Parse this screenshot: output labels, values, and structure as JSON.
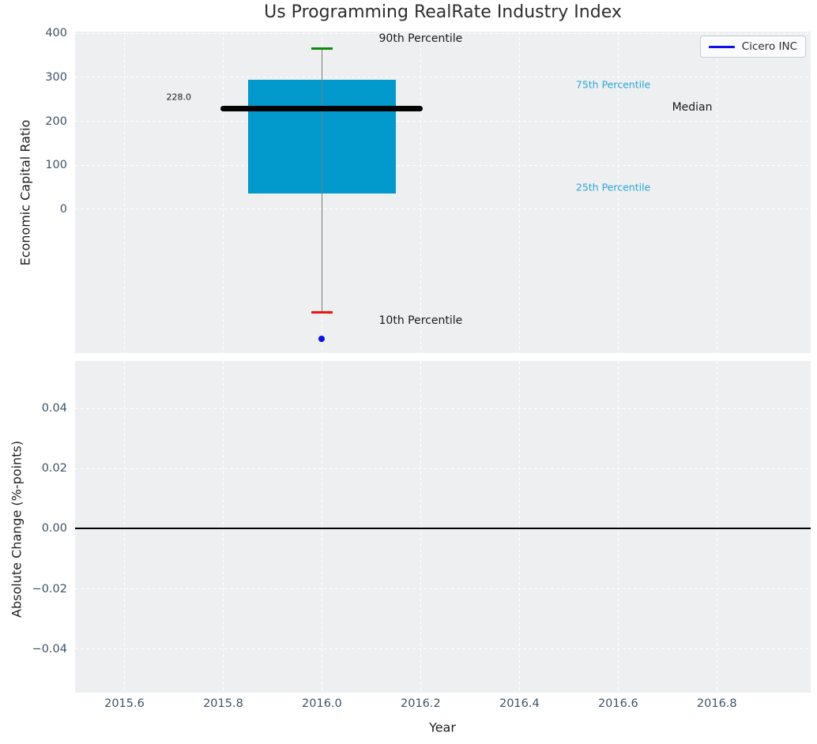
{
  "figure": {
    "title": "Us Programming RealRate Industry Index",
    "background": "#ffffff",
    "axes_background": "#edeff0",
    "grid_color": "#ffffff",
    "tick_color": "#3d5266"
  },
  "chart_data": [
    {
      "type": "boxplot",
      "title": "Us Programming RealRate Industry Index",
      "ylabel": "Economic Capital Ratio",
      "xlabel": "",
      "grid": "dashed-white",
      "legend_position": "upper right",
      "legend": {
        "label": "Cicero INC",
        "line_color": "#0d0df2"
      },
      "x_year": 2016,
      "box": {
        "p90": 365,
        "p75": 295,
        "median": 228,
        "p25": 35,
        "p10": -235,
        "median_label": "228.0",
        "box_color": "#0299cd",
        "whisker_color": "#7a7a7a",
        "p90_cap_color": "#0e8a0e",
        "p10_cap_color": "#ee1408",
        "median_color": "#000000",
        "box_halfwidth_years": 0.15,
        "median_halfwidth_years": 0.205,
        "cap_halfwidth_years": 0.022
      },
      "company_point": {
        "name": "Cicero INC",
        "x": 2016,
        "y": -295,
        "color": "#0d0df2"
      },
      "annotations": [
        {
          "text": "90th Percentile",
          "x": 2016.2,
          "y": 387,
          "color": "#1a1a1a",
          "size": 14
        },
        {
          "text": "75th Percentile",
          "x": 2016.59,
          "y": 284,
          "color": "#2aa6d8",
          "size": 12.5
        },
        {
          "text": "Median",
          "x": 2016.75,
          "y": 232,
          "color": "#1a1a1a",
          "size": 14
        },
        {
          "text": "25th Percentile",
          "x": 2016.59,
          "y": 50,
          "color": "#2aa6d8",
          "size": 12.5
        },
        {
          "text": "10th Percentile",
          "x": 2016.2,
          "y": -253,
          "color": "#1a1a1a",
          "size": 14
        },
        {
          "text": "228.0",
          "x": 2015.71,
          "y": 255,
          "color": "#1a1a1a",
          "size": 11
        }
      ],
      "ylim": [
        -327,
        404
      ],
      "xlim": [
        2015.5,
        2016.99
      ],
      "yticks": [
        {
          "v": 400,
          "label": "400"
        },
        {
          "v": 300,
          "label": "300"
        },
        {
          "v": 200,
          "label": "200"
        },
        {
          "v": 100,
          "label": "100"
        },
        {
          "v": 0,
          "label": "0"
        }
      ],
      "xticks": [
        {
          "v": 2015.6,
          "label": "2015.6"
        },
        {
          "v": 2015.8,
          "label": "2015.8"
        },
        {
          "v": 2016.0,
          "label": "2016.0"
        },
        {
          "v": 2016.2,
          "label": "2016.2"
        },
        {
          "v": 2016.4,
          "label": "2016.4"
        },
        {
          "v": 2016.6,
          "label": "2016.6"
        },
        {
          "v": 2016.8,
          "label": "2016.8"
        }
      ]
    },
    {
      "type": "line",
      "ylabel": "Absolute Change (%-points)",
      "xlabel": "Year",
      "grid": "dashed-white",
      "series": [],
      "zero_line": 0.0,
      "ylim": [
        -0.0545,
        0.0558
      ],
      "xlim": [
        2015.5,
        2016.99
      ],
      "yticks": [
        {
          "v": 0.04,
          "label": "0.04"
        },
        {
          "v": 0.02,
          "label": "0.02"
        },
        {
          "v": 0.0,
          "label": "0.00"
        },
        {
          "v": -0.02,
          "label": "−0.02"
        },
        {
          "v": -0.04,
          "label": "−0.04"
        }
      ],
      "xticks": [
        {
          "v": 2015.6,
          "label": "2015.6"
        },
        {
          "v": 2015.8,
          "label": "2015.8"
        },
        {
          "v": 2016.0,
          "label": "2016.0"
        },
        {
          "v": 2016.2,
          "label": "2016.2"
        },
        {
          "v": 2016.4,
          "label": "2016.4"
        },
        {
          "v": 2016.6,
          "label": "2016.6"
        },
        {
          "v": 2016.8,
          "label": "2016.8"
        }
      ]
    }
  ]
}
